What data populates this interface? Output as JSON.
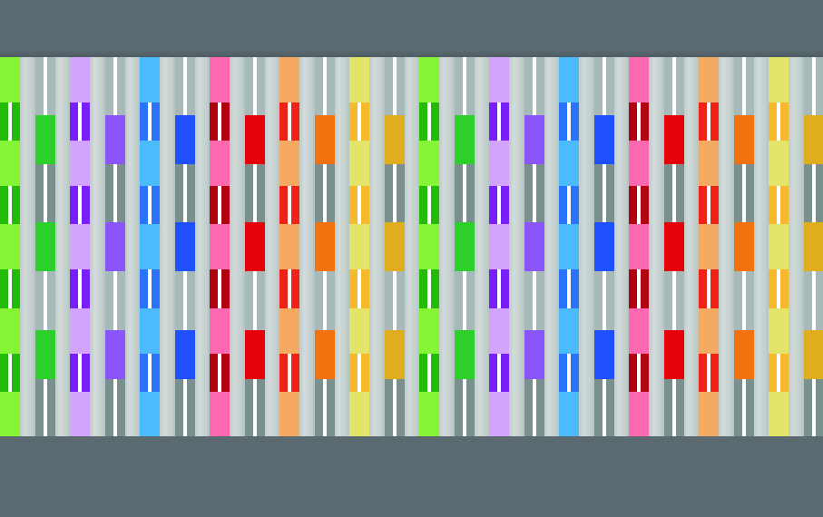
{
  "palette": [
    {
      "name": "green",
      "light": "#84f434",
      "dark": "#22bb0a",
      "block": "#2dcf2a"
    },
    {
      "name": "purple",
      "light": "#d2a4fb",
      "dark": "#7a1ef8",
      "block": "#8a55fb"
    },
    {
      "name": "blue",
      "light": "#4bbbfb",
      "dark": "#2b73fb",
      "block": "#2050fb"
    },
    {
      "name": "red",
      "light": "#fd68b0",
      "dark": "#b1020f",
      "block": "#e6020a"
    },
    {
      "name": "orange",
      "light": "#f5aa63",
      "dark": "#ef2315",
      "block": "#f27210"
    },
    {
      "name": "yellow",
      "light": "#e5e46a",
      "dark": "#f6b92b",
      "block": "#e0ad1f"
    }
  ],
  "gray": {
    "light": "#a8b9b9",
    "dark": "#79908f"
  },
  "repeat_count": 2
}
